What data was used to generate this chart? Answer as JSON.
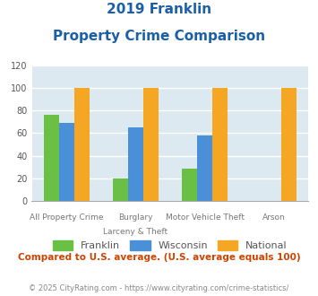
{
  "title_line1": "2019 Franklin",
  "title_line2": "Property Crime Comparison",
  "cat_labels_line1": [
    "All Property Crime",
    "Burglary",
    "Motor Vehicle Theft",
    "Arson"
  ],
  "cat_labels_line2": [
    "",
    "Larceny & Theft",
    "",
    ""
  ],
  "franklin": [
    76,
    20,
    29,
    0
  ],
  "wisconsin": [
    69,
    65,
    58,
    0
  ],
  "national": [
    100,
    100,
    100,
    100
  ],
  "franklin_color": "#6abf45",
  "wisconsin_color": "#4a90d9",
  "national_color": "#f5a623",
  "ylim": [
    0,
    120
  ],
  "yticks": [
    0,
    20,
    40,
    60,
    80,
    100,
    120
  ],
  "title_color": "#1a5fa8",
  "bg_color": "#dce9f0",
  "grid_color": "#ffffff",
  "footer_text": "Compared to U.S. average. (U.S. average equals 100)",
  "footer_color": "#cc4400",
  "credit_text": "© 2025 CityRating.com - https://www.cityrating.com/crime-statistics/",
  "credit_color": "#888888",
  "legend_labels": [
    "Franklin",
    "Wisconsin",
    "National"
  ]
}
